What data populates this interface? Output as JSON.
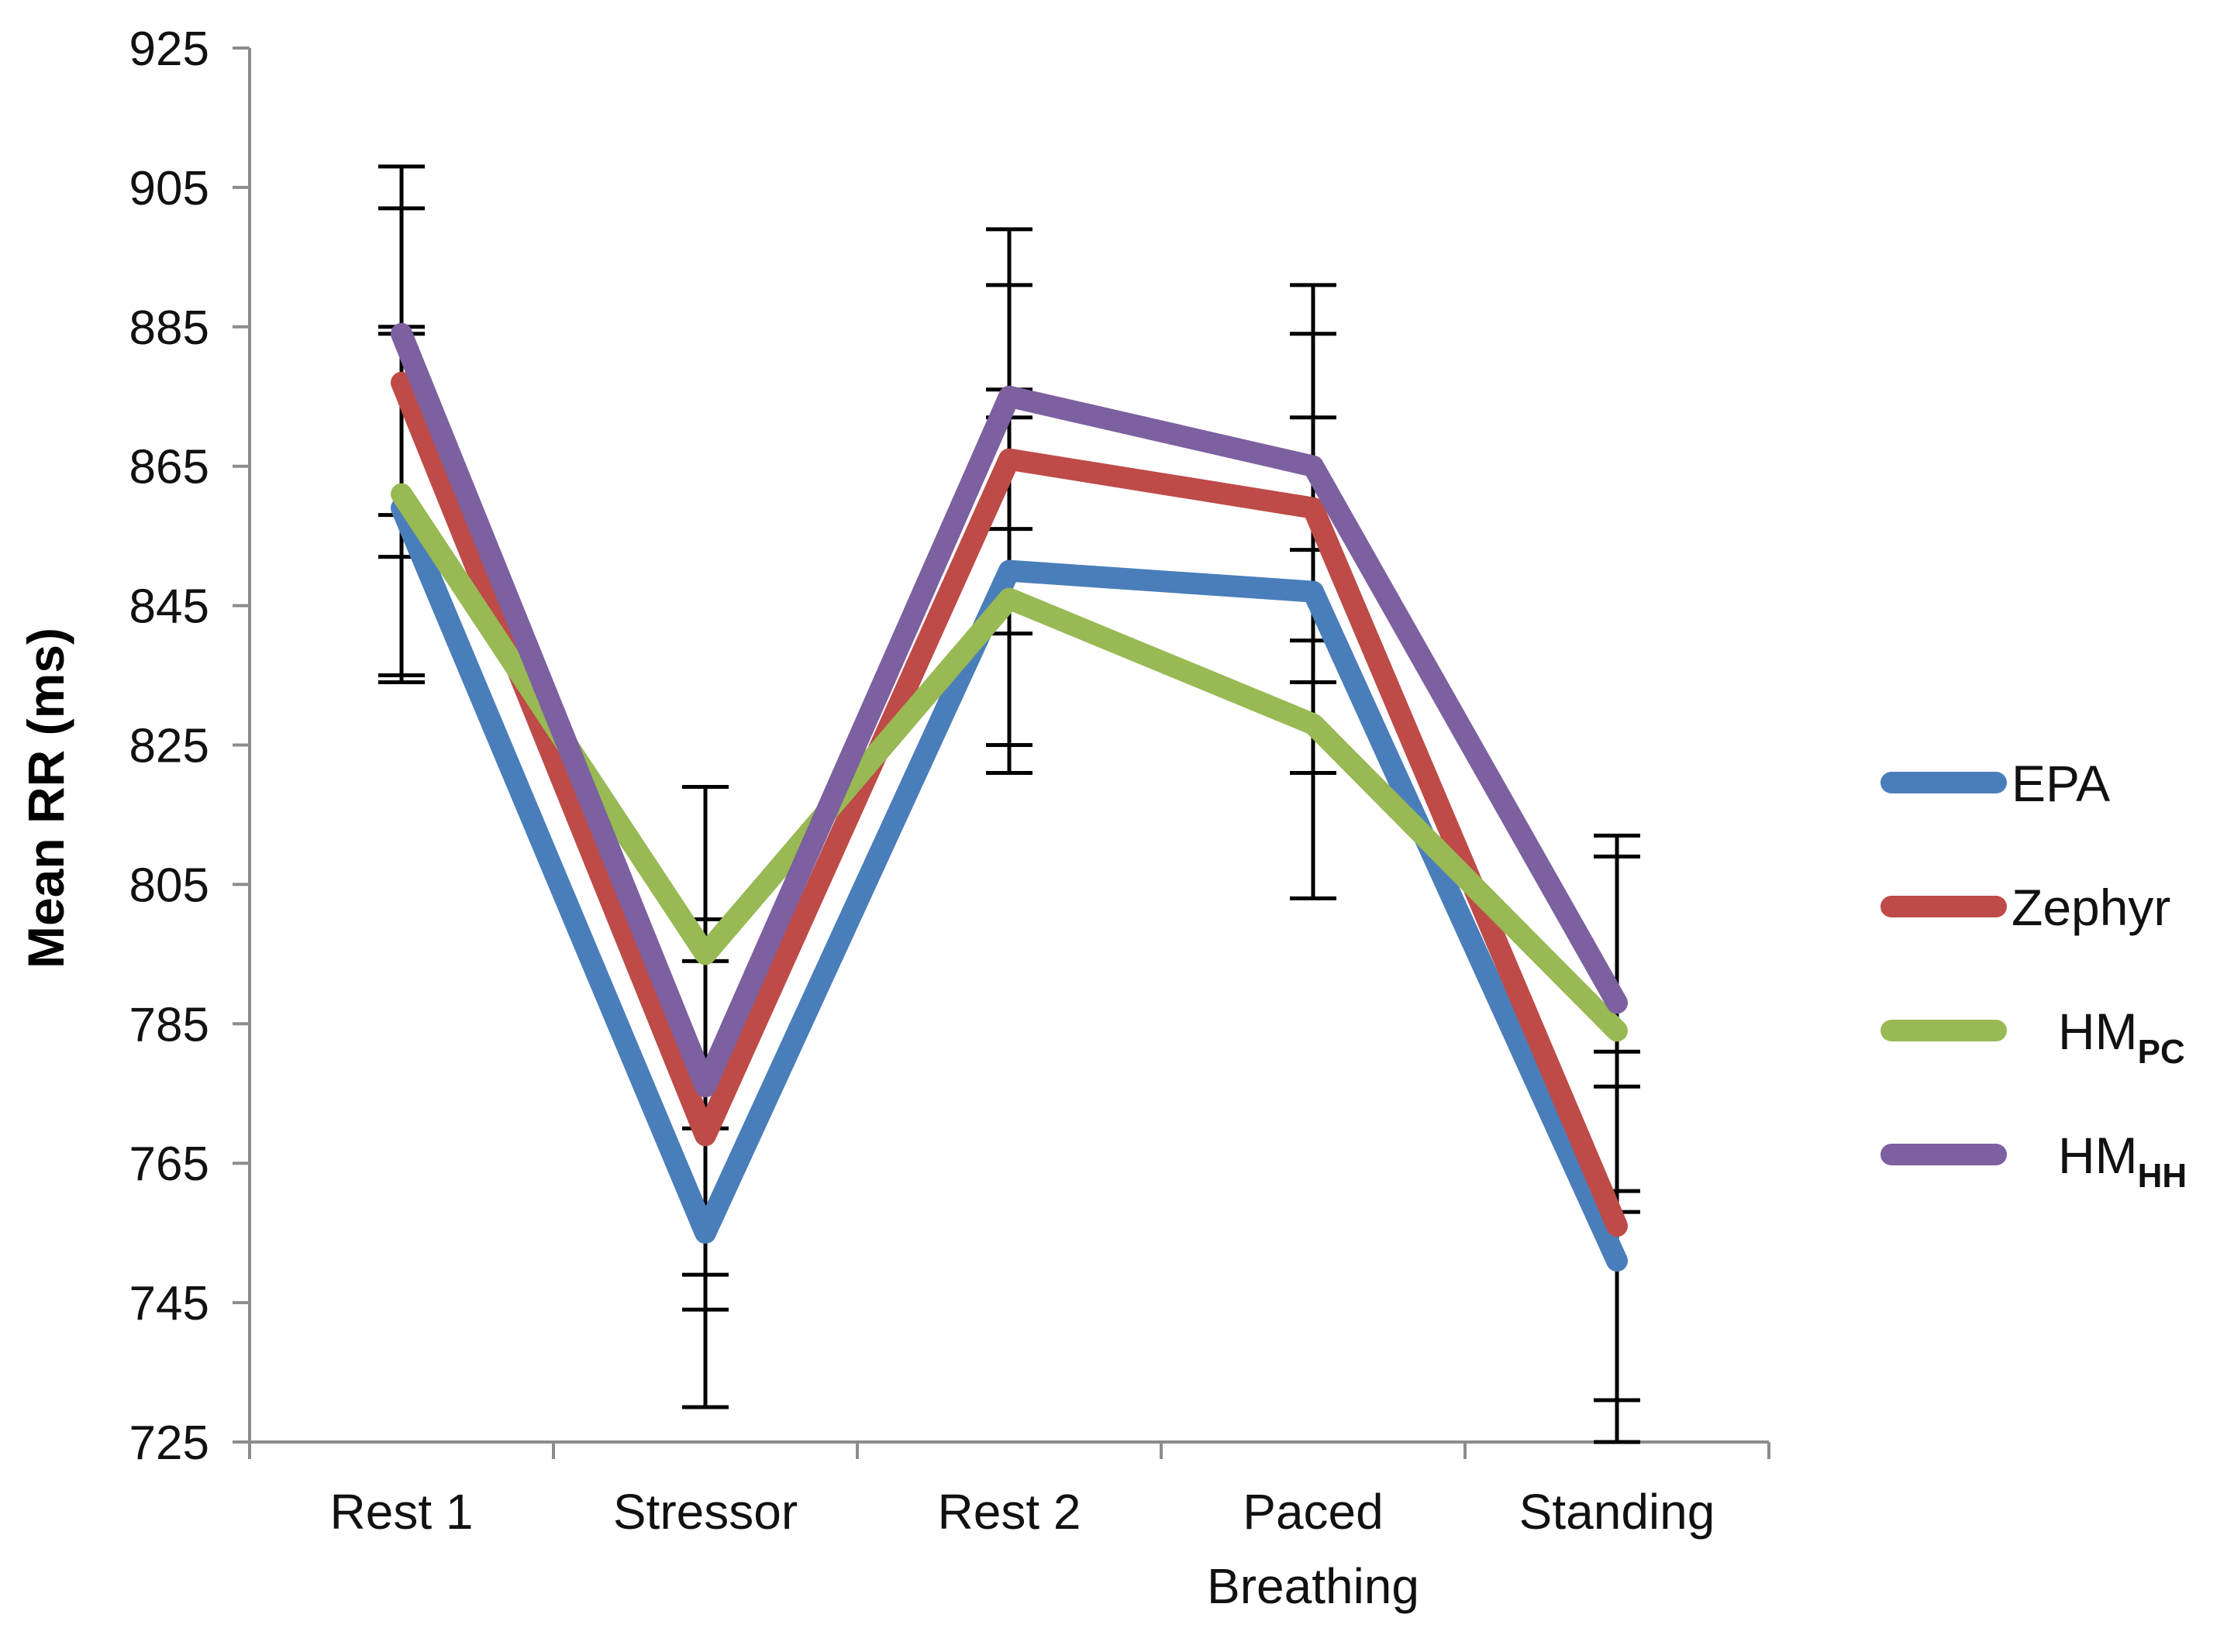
{
  "chart_data": {
    "type": "line",
    "title": "",
    "xlabel": "",
    "ylabel": "Mean RR (ms)",
    "ylim": [
      725,
      925
    ],
    "ytick_step": 20,
    "yticks": [
      "725",
      "745",
      "765",
      "785",
      "805",
      "825",
      "845",
      "865",
      "885",
      "905",
      "925"
    ],
    "categories": [
      [
        "Rest 1"
      ],
      [
        "Stressor"
      ],
      [
        "Rest 2"
      ],
      [
        "Paced",
        "Breathing"
      ],
      [
        "Standing"
      ]
    ],
    "series": [
      {
        "name": "EPA",
        "sub": "",
        "color": "#4A7EBB",
        "values": [
          859,
          755,
          850,
          847,
          751
        ],
        "error": [
          23,
          11,
          26,
          25,
          26
        ]
      },
      {
        "name": "Zephyr",
        "sub": "",
        "color": "#BE4B48",
        "values": [
          877,
          769,
          866,
          859,
          756
        ],
        "error": [
          0,
          0,
          0,
          0,
          0
        ]
      },
      {
        "name": "HM",
        "sub": "PC",
        "color": "#98B954",
        "values": [
          861,
          795,
          846,
          828,
          784
        ],
        "error": [
          0,
          0,
          0,
          0,
          0
        ]
      },
      {
        "name": "HM",
        "sub": "HH",
        "color": "#7D60A0",
        "values": [
          884,
          776,
          875,
          865,
          788
        ],
        "error": [
          0,
          0,
          0,
          0,
          0
        ]
      }
    ],
    "error_bars": [
      {
        "x": 0,
        "lo": 834,
        "hi": 908
      },
      {
        "x": 0,
        "lo": 835,
        "hi": 902
      },
      {
        "x": 0,
        "lo": 852,
        "hi": 885
      },
      {
        "x": 0,
        "lo": 858,
        "hi": 884
      },
      {
        "x": 1,
        "lo": 730,
        "hi": 819
      },
      {
        "x": 1,
        "lo": 744,
        "hi": 800
      },
      {
        "x": 1,
        "lo": 749,
        "hi": 794
      },
      {
        "x": 1,
        "lo": 770,
        "hi": 780
      },
      {
        "x": 2,
        "lo": 821,
        "hi": 899
      },
      {
        "x": 2,
        "lo": 825,
        "hi": 891
      },
      {
        "x": 2,
        "lo": 841,
        "hi": 876
      },
      {
        "x": 2,
        "lo": 856,
        "hi": 872
      },
      {
        "x": 3,
        "lo": 803,
        "hi": 891
      },
      {
        "x": 3,
        "lo": 821,
        "hi": 884
      },
      {
        "x": 3,
        "lo": 834,
        "hi": 872
      },
      {
        "x": 3,
        "lo": 840,
        "hi": 853
      },
      {
        "x": 4,
        "lo": 725,
        "hi": 812
      },
      {
        "x": 4,
        "lo": 731,
        "hi": 809
      },
      {
        "x": 4,
        "lo": 758,
        "hi": 781
      },
      {
        "x": 4,
        "lo": 761,
        "hi": 776
      }
    ],
    "legend_position": "right",
    "grid": false
  }
}
